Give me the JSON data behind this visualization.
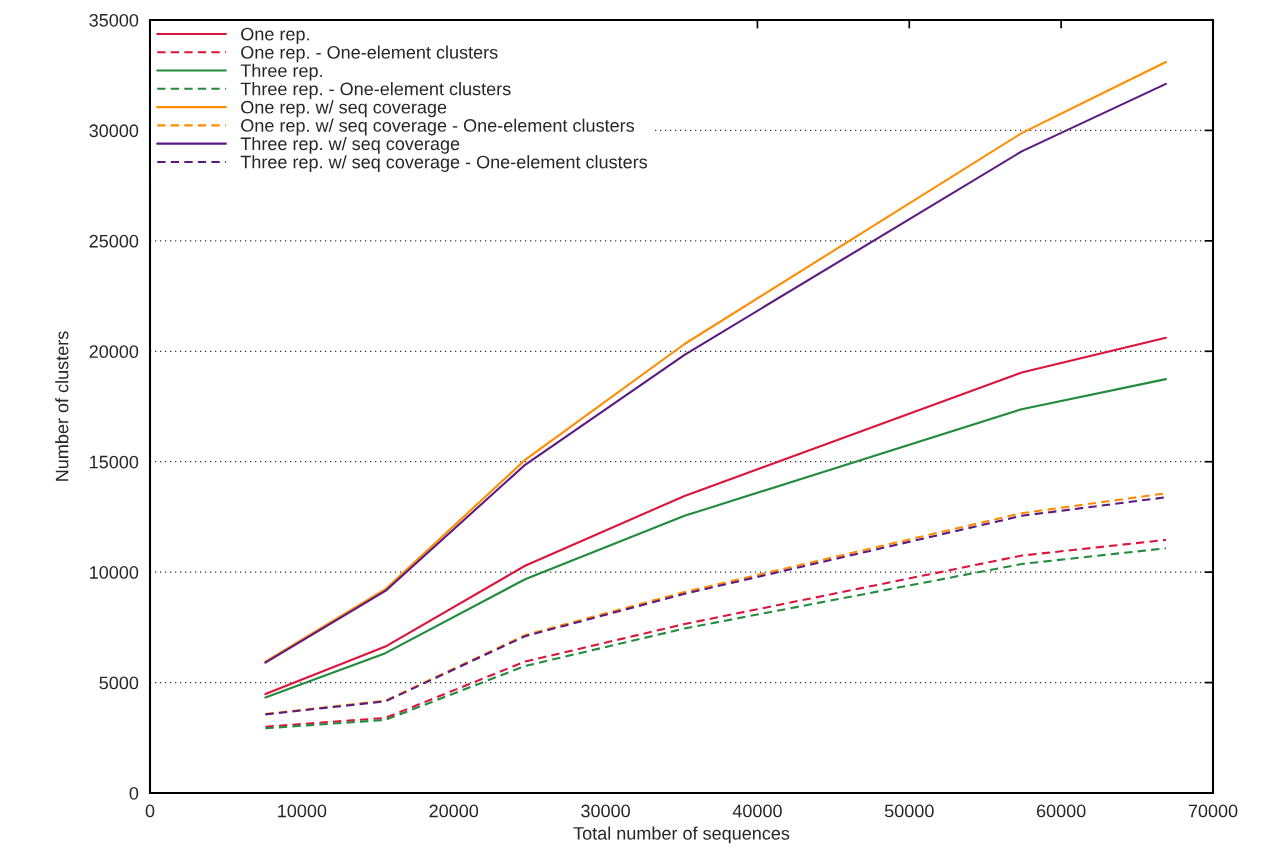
{
  "chart_data": {
    "type": "line",
    "xlabel": "Total number of sequences",
    "ylabel": "Number of clusters",
    "x": [
      7600,
      15500,
      24700,
      35200,
      57400,
      66900
    ],
    "series": [
      {
        "name": "One rep.",
        "color": "#dc143c",
        "line_style": "solid",
        "values": [
          4480,
          6630,
          10290,
          13450,
          19040,
          20610
        ]
      },
      {
        "name": "One rep. - One-element clusters",
        "color": "#dc143c",
        "line_style": "dashed",
        "values": [
          3000,
          3400,
          5950,
          7650,
          10750,
          11460
        ]
      },
      {
        "name": "Three rep.",
        "color": "#228b3c",
        "line_style": "solid",
        "values": [
          4320,
          6330,
          9680,
          12550,
          17380,
          18740
        ]
      },
      {
        "name": "Three rep. - One-element clusters",
        "color": "#228b3c",
        "line_style": "dashed",
        "values": [
          2930,
          3310,
          5750,
          7450,
          10370,
          11080
        ]
      },
      {
        "name": "One rep. w/ seq coverage",
        "color": "#ff8c00",
        "line_style": "solid",
        "values": [
          5950,
          9230,
          15080,
          20330,
          29880,
          33100
        ]
      },
      {
        "name": "One rep. w/ seq coverage - One-element clusters",
        "color": "#ff8c00",
        "line_style": "dashed",
        "values": [
          3580,
          4180,
          7150,
          9100,
          12670,
          13570
        ]
      },
      {
        "name": "Three rep. w/ seq coverage",
        "color": "#5b1a80",
        "line_style": "solid",
        "values": [
          5900,
          9150,
          14860,
          19840,
          29050,
          32110
        ]
      },
      {
        "name": "Three rep. w/ seq coverage - One-element clusters",
        "color": "#5b1a80",
        "line_style": "dashed",
        "values": [
          3560,
          4150,
          7100,
          9020,
          12550,
          13390
        ]
      }
    ],
    "xlim": [
      0,
      70000
    ],
    "xticks": [
      0,
      10000,
      20000,
      30000,
      40000,
      50000,
      60000,
      70000
    ],
    "ylim": [
      0,
      35000
    ],
    "yticks": [
      0,
      5000,
      10000,
      15000,
      20000,
      25000,
      30000,
      35000
    ],
    "grid": "y",
    "legend": "top left",
    "marker": "none"
  }
}
